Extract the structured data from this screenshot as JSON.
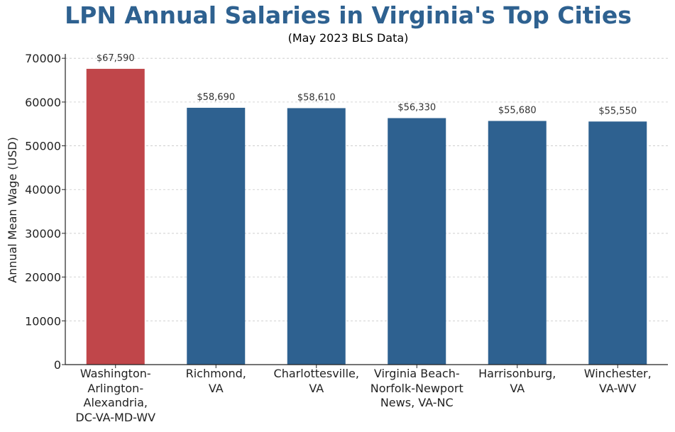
{
  "chart_data": {
    "type": "bar",
    "title": "LPN Annual Salaries in Virginia's Top Cities",
    "subtitle": "(May 2023 BLS Data)",
    "xlabel": "",
    "ylabel": "Annual Mean Wage (USD)",
    "categories": [
      "Washington-\nArlington-\nAlexandria,\nDC-VA-MD-WV",
      "Richmond,\nVA",
      "Charlottesville,\nVA",
      "Virginia Beach-\nNorfolk-Newport\nNews, VA-NC",
      "Harrisonburg,\nVA",
      "Winchester,\nVA-WV"
    ],
    "values": [
      67590,
      58690,
      58610,
      56330,
      55680,
      55550
    ],
    "value_labels": [
      "$67,590",
      "$58,690",
      "$58,610",
      "$56,330",
      "$55,680",
      "$55,550"
    ],
    "yticks": [
      0,
      10000,
      20000,
      30000,
      40000,
      50000,
      60000,
      70000
    ],
    "ylim": [
      0,
      71000
    ],
    "grid": true,
    "colors": {
      "highlight": "#c0464a",
      "default": "#2e6190",
      "title": "#2e6190"
    },
    "highlight_index": 0
  }
}
